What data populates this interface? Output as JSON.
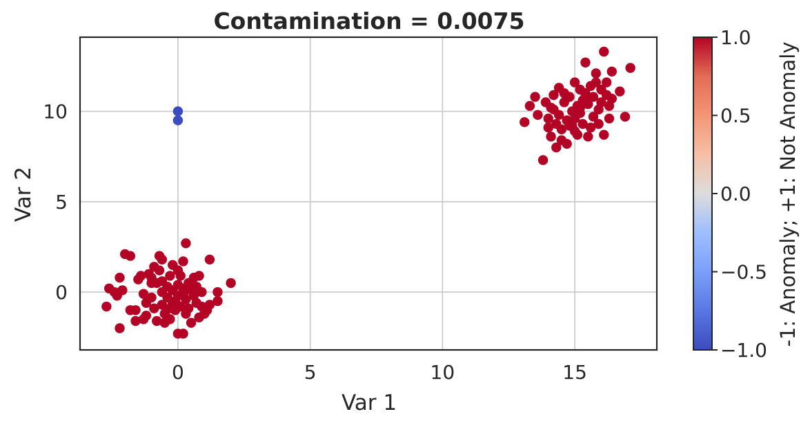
{
  "chart_data": {
    "type": "scatter",
    "title": "Contamination = 0.0075",
    "xlabel": "Var 1",
    "ylabel": "Var 2",
    "xlim": [
      -3.7,
      18.1
    ],
    "ylim": [
      -3.2,
      14.1
    ],
    "xticks": [
      0,
      5,
      10,
      15
    ],
    "yticks": [
      0,
      5,
      10
    ],
    "grid": true,
    "colormap": "coolwarm",
    "colorbar": {
      "label": "-1: Anomaly; +1: Not Anomaly",
      "range": [
        -1.0,
        1.0
      ],
      "ticks": [
        -1.0,
        -0.5,
        0.0,
        0.5,
        1.0
      ],
      "tick_labels": [
        "−1.0",
        "−0.5",
        "0.0",
        "0.5",
        "1.0"
      ]
    },
    "colors": {
      "anomaly": "#3b4cc0",
      "normal": "#b40426"
    },
    "series": [
      {
        "class": -1,
        "color": "#3b4cc0",
        "points": [
          [
            0.0,
            10.0
          ],
          [
            0.0,
            9.5
          ]
        ]
      },
      {
        "class": 1,
        "color": "#b40426",
        "points": [
          [
            -2.7,
            -0.8
          ],
          [
            -2.6,
            0.2
          ],
          [
            -2.4,
            0.0
          ],
          [
            -2.3,
            -0.2
          ],
          [
            -2.2,
            0.8
          ],
          [
            -2.2,
            -2.0
          ],
          [
            -2.1,
            0.1
          ],
          [
            -2.0,
            2.1
          ],
          [
            -1.8,
            2.0
          ],
          [
            -1.8,
            -1.0
          ],
          [
            -1.6,
            -1.0
          ],
          [
            -1.6,
            -1.6
          ],
          [
            -1.5,
            0.7
          ],
          [
            -1.4,
            0.9
          ],
          [
            -1.3,
            -0.1
          ],
          [
            -1.3,
            -1.5
          ],
          [
            -1.2,
            -0.6
          ],
          [
            -1.2,
            -1.3
          ],
          [
            -1.1,
            1.0
          ],
          [
            -1.0,
            0.5
          ],
          [
            -1.0,
            -0.3
          ],
          [
            -0.9,
            1.4
          ],
          [
            -0.9,
            -0.9
          ],
          [
            -0.8,
            0.5
          ],
          [
            -0.8,
            -1.6
          ],
          [
            -0.7,
            2.0
          ],
          [
            -0.7,
            1.2
          ],
          [
            -0.6,
            1.8
          ],
          [
            -0.6,
            0.0
          ],
          [
            -0.6,
            -0.7
          ],
          [
            -0.5,
            -1.2
          ],
          [
            -0.5,
            -1.7
          ],
          [
            -0.4,
            0.3
          ],
          [
            -0.4,
            -0.3
          ],
          [
            -0.3,
            0.9
          ],
          [
            -0.3,
            -0.9
          ],
          [
            -0.3,
            -1.5
          ],
          [
            -0.2,
            1.5
          ],
          [
            -0.2,
            0.1
          ],
          [
            -0.1,
            -0.5
          ],
          [
            -0.1,
            -1.0
          ],
          [
            0.0,
            1.2
          ],
          [
            0.0,
            0.4
          ],
          [
            0.0,
            -0.2
          ],
          [
            0.0,
            -2.3
          ],
          [
            0.1,
            0.9
          ],
          [
            0.1,
            -0.8
          ],
          [
            0.2,
            1.7
          ],
          [
            0.2,
            0.2
          ],
          [
            0.2,
            -2.3
          ],
          [
            0.3,
            2.7
          ],
          [
            0.3,
            -0.4
          ],
          [
            0.3,
            -1.2
          ],
          [
            0.4,
            0.5
          ],
          [
            0.4,
            -0.9
          ],
          [
            0.5,
            -1.7
          ],
          [
            0.6,
            0.8
          ],
          [
            0.6,
            -0.2
          ],
          [
            0.7,
            0.3
          ],
          [
            0.7,
            -0.6
          ],
          [
            0.8,
            0.9
          ],
          [
            0.8,
            -1.4
          ],
          [
            0.9,
            0.0
          ],
          [
            0.9,
            -0.8
          ],
          [
            1.0,
            -1.2
          ],
          [
            1.1,
            -1.0
          ],
          [
            1.2,
            1.8
          ],
          [
            1.2,
            -0.7
          ],
          [
            1.5,
            0.0
          ],
          [
            1.5,
            -0.5
          ],
          [
            2.0,
            0.5
          ],
          [
            -1.0,
            0.8
          ],
          [
            -0.2,
            -0.6
          ],
          [
            0.5,
            0.1
          ],
          [
            -0.6,
            0.6
          ],
          [
            0.2,
            -0.1
          ],
          [
            13.1,
            9.4
          ],
          [
            13.3,
            10.3
          ],
          [
            13.5,
            10.8
          ],
          [
            13.6,
            9.8
          ],
          [
            13.8,
            7.3
          ],
          [
            13.9,
            10.5
          ],
          [
            14.0,
            9.1
          ],
          [
            14.0,
            9.6
          ],
          [
            14.1,
            8.6
          ],
          [
            14.1,
            10.2
          ],
          [
            14.2,
            10.9
          ],
          [
            14.3,
            8.0
          ],
          [
            14.3,
            9.3
          ],
          [
            14.4,
            9.8
          ],
          [
            14.4,
            11.3
          ],
          [
            14.5,
            8.4
          ],
          [
            14.5,
            9.0
          ],
          [
            14.6,
            10.5
          ],
          [
            14.6,
            11.0
          ],
          [
            14.7,
            8.2
          ],
          [
            14.7,
            9.5
          ],
          [
            14.8,
            10.8
          ],
          [
            14.8,
            9.2
          ],
          [
            14.9,
            10.0
          ],
          [
            15.0,
            11.6
          ],
          [
            15.0,
            9.6
          ],
          [
            15.0,
            8.9
          ],
          [
            15.1,
            10.3
          ],
          [
            15.1,
            8.7
          ],
          [
            15.2,
            11.2
          ],
          [
            15.2,
            9.9
          ],
          [
            15.3,
            10.6
          ],
          [
            15.3,
            9.3
          ],
          [
            15.4,
            12.7
          ],
          [
            15.4,
            11.0
          ],
          [
            15.5,
            8.6
          ],
          [
            15.5,
            10.4
          ],
          [
            15.6,
            9.1
          ],
          [
            15.6,
            11.4
          ],
          [
            15.7,
            10.8
          ],
          [
            15.7,
            9.7
          ],
          [
            15.8,
            12.1
          ],
          [
            15.8,
            11.6
          ],
          [
            15.9,
            9.3
          ],
          [
            15.9,
            10.1
          ],
          [
            16.0,
            11.2
          ],
          [
            16.0,
            10.5
          ],
          [
            16.1,
            13.3
          ],
          [
            16.1,
            8.7
          ],
          [
            16.2,
            10.9
          ],
          [
            16.2,
            11.6
          ],
          [
            16.3,
            9.6
          ],
          [
            16.3,
            10.3
          ],
          [
            16.4,
            12.2
          ],
          [
            16.4,
            10.7
          ],
          [
            16.7,
            11.1
          ],
          [
            16.9,
            9.7
          ],
          [
            17.1,
            12.4
          ],
          [
            14.2,
            10.1
          ],
          [
            15.2,
            10.2
          ],
          [
            14.9,
            9.2
          ],
          [
            15.4,
            10.8
          ]
        ]
      }
    ]
  }
}
